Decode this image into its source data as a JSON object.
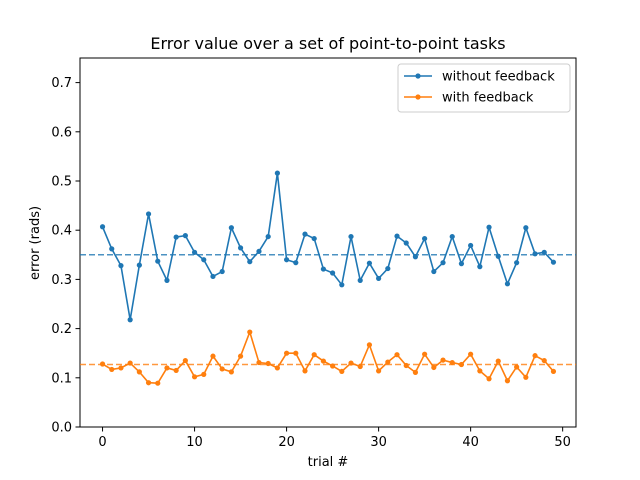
{
  "chart_data": {
    "type": "line",
    "title": "Error value over a set of point-to-point tasks",
    "xlabel": "trial #",
    "ylabel": "error (rads)",
    "xlim": [
      -2.45,
      51.45
    ],
    "ylim": [
      0.0,
      0.75
    ],
    "xticks": [
      0,
      10,
      20,
      30,
      40,
      50
    ],
    "yticks": [
      0.0,
      0.1,
      0.2,
      0.3,
      0.4,
      0.5,
      0.6,
      0.7
    ],
    "x_tick_labels": [
      "0",
      "10",
      "20",
      "30",
      "40",
      "50"
    ],
    "y_tick_labels": [
      "0.0",
      "0.1",
      "0.2",
      "0.3",
      "0.4",
      "0.5",
      "0.6",
      "0.7"
    ],
    "legend_position": "upper right",
    "series": [
      {
        "name": "without feedback",
        "color": "#1f77b4",
        "mean": 0.35,
        "x": [
          0,
          1,
          2,
          3,
          4,
          5,
          6,
          7,
          8,
          9,
          10,
          11,
          12,
          13,
          14,
          15,
          16,
          17,
          18,
          19,
          20,
          21,
          22,
          23,
          24,
          25,
          26,
          27,
          28,
          29,
          30,
          31,
          32,
          33,
          34,
          35,
          36,
          37,
          38,
          39,
          40,
          41,
          42,
          43,
          44,
          45,
          46,
          47,
          48,
          49
        ],
        "values": [
          0.407,
          0.362,
          0.328,
          0.218,
          0.329,
          0.433,
          0.337,
          0.298,
          0.386,
          0.389,
          0.355,
          0.34,
          0.306,
          0.316,
          0.405,
          0.364,
          0.336,
          0.357,
          0.387,
          0.516,
          0.34,
          0.334,
          0.392,
          0.383,
          0.321,
          0.313,
          0.289,
          0.387,
          0.298,
          0.333,
          0.302,
          0.322,
          0.388,
          0.374,
          0.346,
          0.383,
          0.316,
          0.334,
          0.387,
          0.332,
          0.369,
          0.326,
          0.406,
          0.347,
          0.291,
          0.334,
          0.405,
          0.352,
          0.355,
          0.335
        ]
      },
      {
        "name": "with feedback",
        "color": "#ff7f0e",
        "mean": 0.127,
        "x": [
          0,
          1,
          2,
          3,
          4,
          5,
          6,
          7,
          8,
          9,
          10,
          11,
          12,
          13,
          14,
          15,
          16,
          17,
          18,
          19,
          20,
          21,
          22,
          23,
          24,
          25,
          26,
          27,
          28,
          29,
          30,
          31,
          32,
          33,
          34,
          35,
          36,
          37,
          38,
          39,
          40,
          41,
          42,
          43,
          44,
          45,
          46,
          47,
          48,
          49
        ],
        "values": [
          0.128,
          0.117,
          0.12,
          0.13,
          0.112,
          0.09,
          0.089,
          0.12,
          0.115,
          0.135,
          0.102,
          0.107,
          0.144,
          0.118,
          0.112,
          0.144,
          0.193,
          0.131,
          0.129,
          0.12,
          0.15,
          0.15,
          0.114,
          0.147,
          0.134,
          0.124,
          0.113,
          0.13,
          0.123,
          0.167,
          0.114,
          0.132,
          0.147,
          0.125,
          0.111,
          0.148,
          0.121,
          0.136,
          0.131,
          0.127,
          0.148,
          0.114,
          0.098,
          0.134,
          0.094,
          0.122,
          0.101,
          0.145,
          0.135,
          0.113
        ]
      }
    ]
  }
}
